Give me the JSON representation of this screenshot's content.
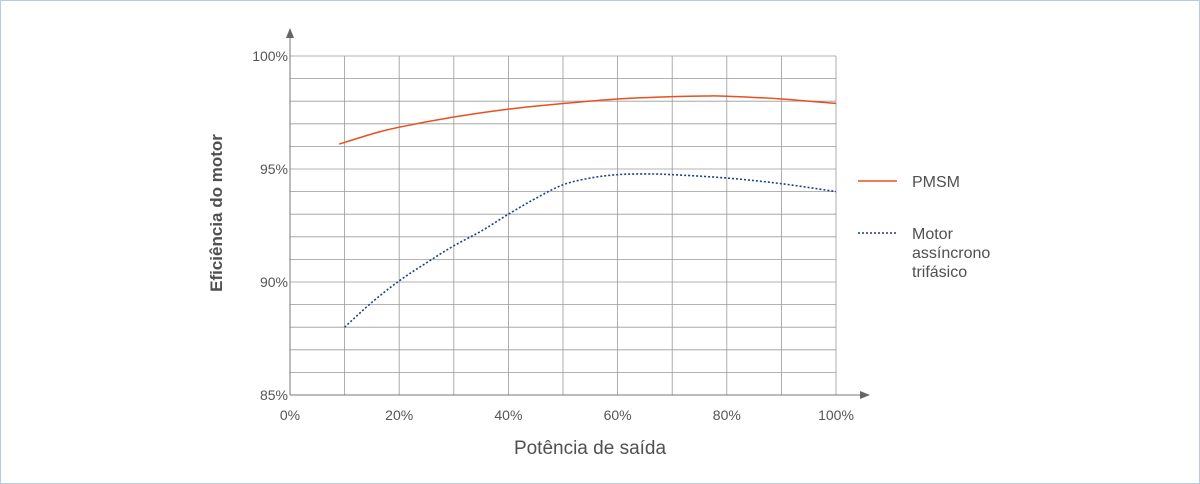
{
  "chart_data": {
    "type": "line",
    "xlabel": "Potência de saída",
    "ylabel": "Eficiência do motor",
    "xlim": [
      0,
      100
    ],
    "ylim": [
      85,
      100
    ],
    "x_ticks": [
      "0%",
      "20%",
      "40%",
      "60%",
      "80%",
      "100%"
    ],
    "y_ticks": [
      "85%",
      "90%",
      "95%",
      "100%"
    ],
    "grid": true,
    "legend_position": "right",
    "series": [
      {
        "name": "PMSM",
        "color": "#e8501e",
        "style": "solid",
        "x": [
          9,
          15,
          20,
          30,
          40,
          50,
          60,
          70,
          76,
          80,
          90,
          100
        ],
        "y": [
          96.1,
          96.55,
          96.85,
          97.3,
          97.65,
          97.9,
          98.1,
          98.2,
          98.23,
          98.22,
          98.1,
          97.9
        ]
      },
      {
        "name": "Motor assíncrono trifásico",
        "legend_lines": [
          "Motor",
          "assíncrono",
          "trifásico"
        ],
        "color": "#1e3f8c",
        "style": "dotted",
        "x": [
          10,
          15,
          20,
          25,
          30,
          35,
          40,
          45,
          50,
          55,
          60,
          65,
          70,
          80,
          90,
          100
        ],
        "y": [
          88.0,
          89.1,
          90.05,
          90.85,
          91.6,
          92.25,
          93.0,
          93.7,
          94.3,
          94.6,
          94.75,
          94.78,
          94.75,
          94.6,
          94.35,
          94.0
        ]
      }
    ]
  }
}
